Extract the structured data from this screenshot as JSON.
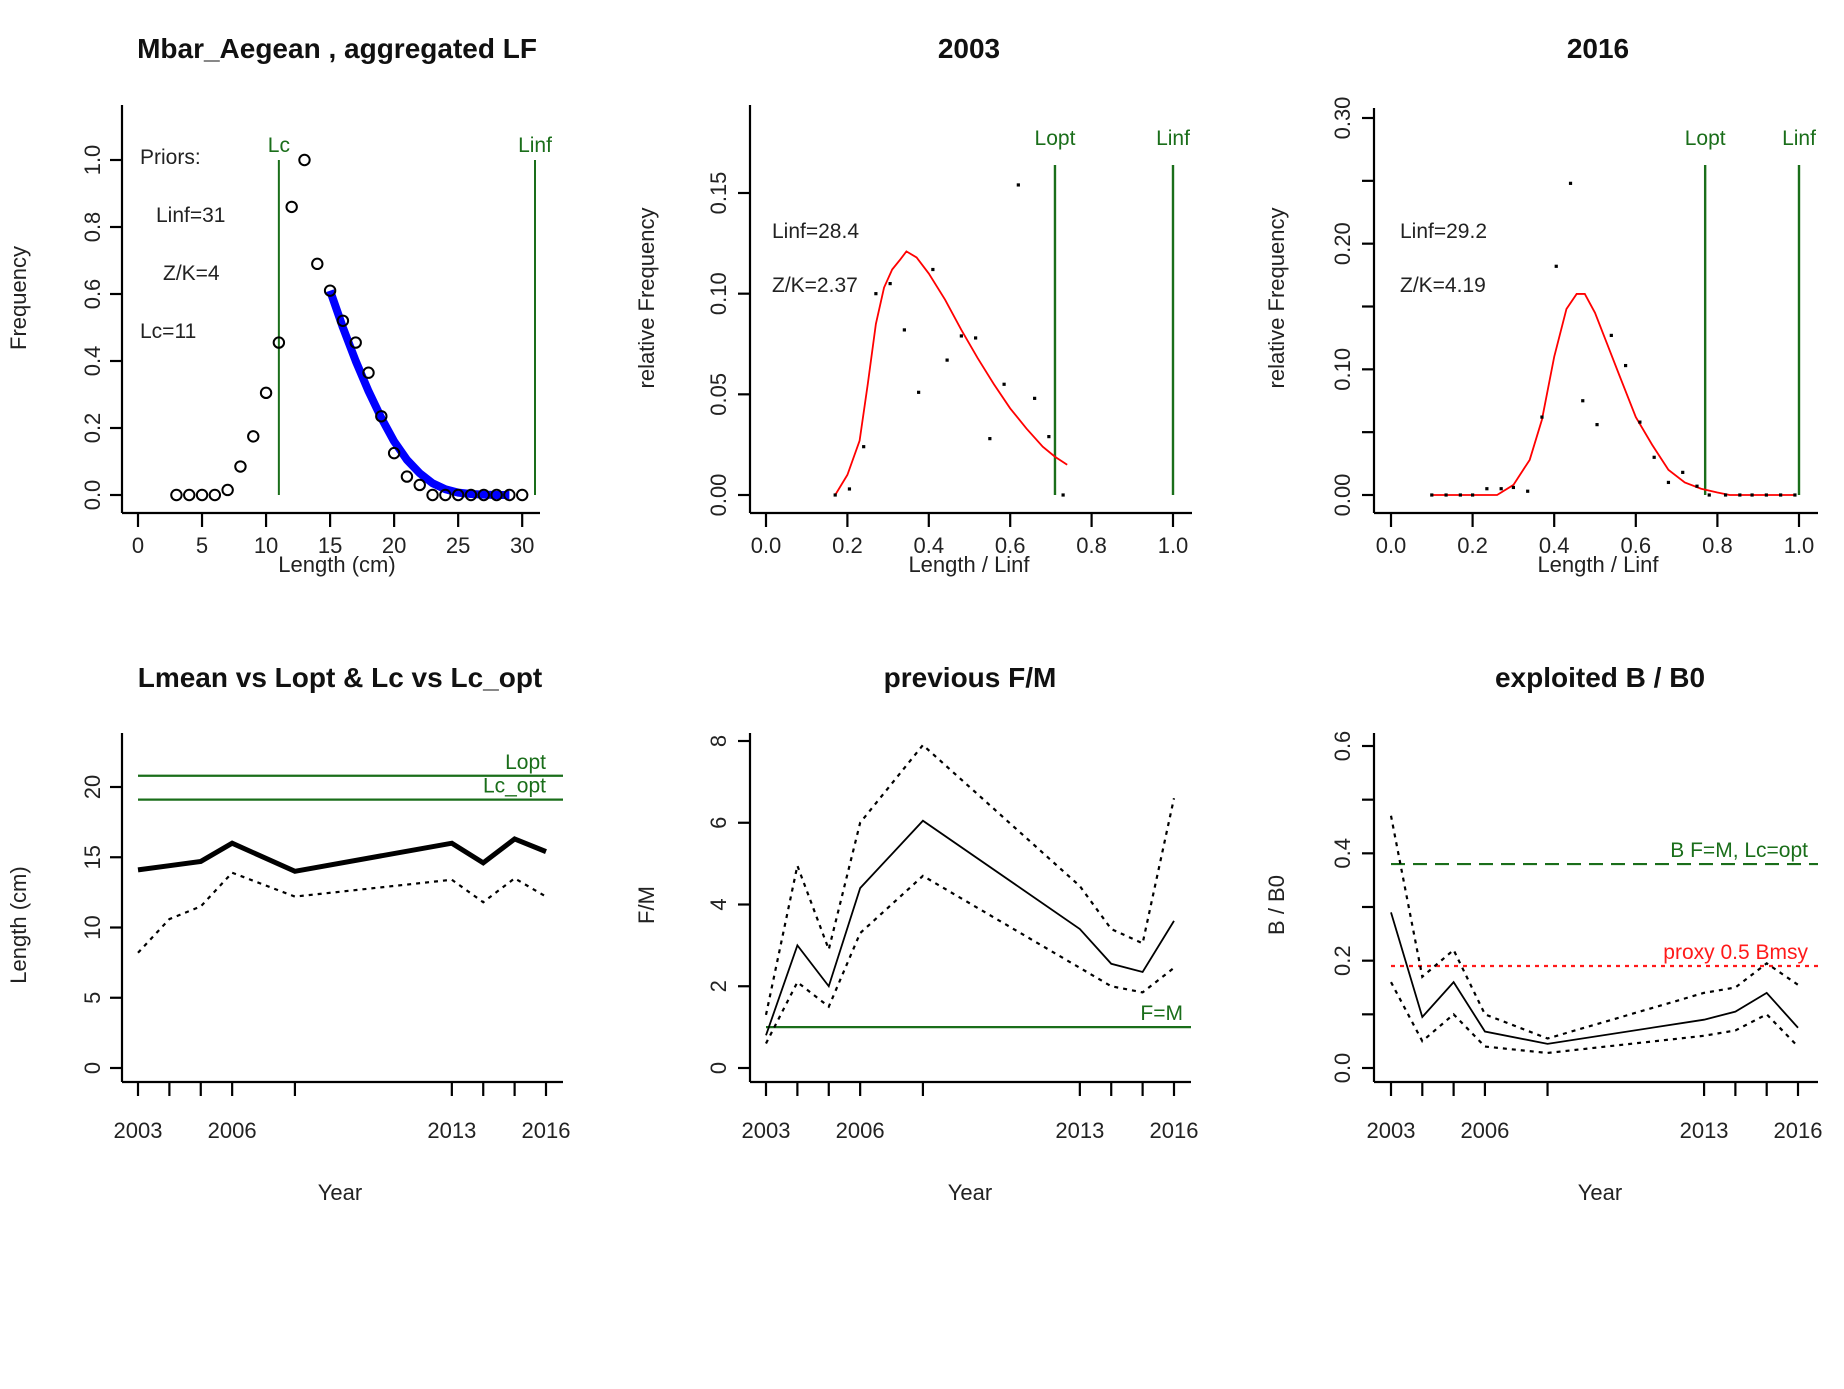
{
  "chart_data": [
    {
      "id": "lf",
      "type": "scatter",
      "title": "Mbar_Aegean , aggregated LF",
      "xlabel": "Length (cm)",
      "ylabel": "Frequency",
      "xlim": [
        0,
        31
      ],
      "ylim": [
        0,
        1.1
      ],
      "xticks": [
        0,
        5,
        10,
        15,
        20,
        25,
        30
      ],
      "yticks": [
        0.0,
        0.2,
        0.4,
        0.6,
        0.8,
        1.0
      ],
      "ytick_labels": [
        "0.0",
        "0.2",
        "0.4",
        "0.6",
        "0.8",
        "1.0"
      ],
      "points": {
        "x": [
          3,
          4,
          5,
          6,
          7,
          8,
          9,
          10,
          11,
          12,
          13,
          14,
          15,
          16,
          17,
          18,
          19,
          20,
          21,
          22,
          23,
          24,
          25,
          26,
          27,
          28,
          29,
          30
        ],
        "y": [
          0.0,
          0.0,
          0.0,
          0.0,
          0.015,
          0.085,
          0.175,
          0.305,
          0.455,
          0.86,
          1.0,
          0.69,
          0.61,
          0.52,
          0.455,
          0.365,
          0.235,
          0.125,
          0.055,
          0.03,
          0.0,
          0.0,
          0.0,
          0.0,
          0.0,
          0.0,
          0.0,
          0.0
        ]
      },
      "fit_curve": {
        "name": "fit",
        "color": "#0000ff",
        "x": [
          15,
          16,
          17,
          18,
          19,
          20,
          21,
          22,
          23,
          24,
          25,
          26,
          27,
          28,
          29
        ],
        "y": [
          0.61,
          0.5,
          0.4,
          0.31,
          0.23,
          0.16,
          0.105,
          0.065,
          0.035,
          0.017,
          0.007,
          0.003,
          0.001,
          0.0,
          0.0
        ]
      },
      "vlines": [
        {
          "label": "Lc",
          "x": 11,
          "color": "#1a6e1a"
        },
        {
          "label": "Linf",
          "x": 31,
          "color": "#1a6e1a"
        }
      ],
      "annotations": [
        "Priors:",
        "Linf=31",
        "Z/K=4",
        "Lc=11"
      ]
    },
    {
      "id": "y2003",
      "type": "scatter",
      "title": "2003",
      "xlabel": "Length / Linf",
      "ylabel": "relative Frequency",
      "xlim": [
        0,
        1.0
      ],
      "ylim": [
        0,
        0.18
      ],
      "xticks": [
        0.0,
        0.2,
        0.4,
        0.6,
        0.8,
        1.0
      ],
      "xtick_labels": [
        "0.0",
        "0.2",
        "0.4",
        "0.6",
        "0.8",
        "1.0"
      ],
      "yticks": [
        0.0,
        0.05,
        0.1,
        0.15
      ],
      "ytick_labels": [
        "0.00",
        "0.05",
        "0.10",
        "0.15"
      ],
      "points": {
        "x": [
          0.17,
          0.205,
          0.24,
          0.27,
          0.305,
          0.34,
          0.375,
          0.41,
          0.445,
          0.48,
          0.515,
          0.55,
          0.585,
          0.62,
          0.66,
          0.695,
          0.73
        ],
        "y": [
          0.0,
          0.003,
          0.024,
          0.1,
          0.105,
          0.082,
          0.051,
          0.112,
          0.067,
          0.079,
          0.078,
          0.028,
          0.055,
          0.154,
          0.048,
          0.029,
          0.0
        ]
      },
      "fit_curve": {
        "name": "fit",
        "color": "#ff0000",
        "x": [
          0.17,
          0.2,
          0.23,
          0.25,
          0.27,
          0.29,
          0.31,
          0.33,
          0.345,
          0.37,
          0.4,
          0.44,
          0.48,
          0.52,
          0.56,
          0.6,
          0.64,
          0.68,
          0.71,
          0.74
        ],
        "y": [
          0.0,
          0.01,
          0.027,
          0.055,
          0.085,
          0.103,
          0.112,
          0.117,
          0.121,
          0.118,
          0.11,
          0.097,
          0.082,
          0.068,
          0.055,
          0.043,
          0.033,
          0.024,
          0.019,
          0.015
        ]
      },
      "vlines": [
        {
          "label": "Lopt",
          "x": 0.71,
          "color": "#1a6e1a"
        },
        {
          "label": "Linf",
          "x": 1.0,
          "color": "#1a6e1a"
        }
      ],
      "annotations": [
        "Linf=28.4",
        "Z/K=2.37"
      ]
    },
    {
      "id": "y2016",
      "type": "scatter",
      "title": "2016",
      "xlabel": "Length / Linf",
      "ylabel": "relative Frequency",
      "xlim": [
        0,
        1.0
      ],
      "ylim": [
        0,
        0.3
      ],
      "xticks": [
        0.0,
        0.2,
        0.4,
        0.6,
        0.8,
        1.0
      ],
      "xtick_labels": [
        "0.0",
        "0.2",
        "0.4",
        "0.6",
        "0.8",
        "1.0"
      ],
      "yticks": [
        0.0,
        0.05,
        0.1,
        0.15,
        0.2,
        0.25,
        0.3
      ],
      "ytick_labels": [
        "0.00",
        "",
        "0.10",
        "",
        "0.20",
        "",
        "0.30"
      ],
      "points": {
        "x": [
          0.1,
          0.135,
          0.17,
          0.2,
          0.235,
          0.27,
          0.3,
          0.335,
          0.37,
          0.405,
          0.44,
          0.47,
          0.505,
          0.54,
          0.575,
          0.61,
          0.645,
          0.68,
          0.715,
          0.75,
          0.78,
          0.82,
          0.855,
          0.885,
          0.92,
          0.955,
          0.99
        ],
        "y": [
          0.0,
          0.0,
          0.0,
          0.0,
          0.005,
          0.005,
          0.006,
          0.003,
          0.062,
          0.182,
          0.248,
          0.075,
          0.056,
          0.127,
          0.103,
          0.058,
          0.03,
          0.01,
          0.018,
          0.007,
          0.0,
          0.0,
          0.0,
          0.0,
          0.0,
          0.0,
          0.0
        ]
      },
      "fit_curve": {
        "name": "fit",
        "color": "#ff0000",
        "x": [
          0.1,
          0.26,
          0.3,
          0.34,
          0.37,
          0.4,
          0.43,
          0.455,
          0.475,
          0.5,
          0.53,
          0.56,
          0.6,
          0.64,
          0.68,
          0.72,
          0.76,
          0.8,
          0.83,
          0.99
        ],
        "y": [
          0.0,
          0.0,
          0.008,
          0.028,
          0.06,
          0.11,
          0.148,
          0.16,
          0.16,
          0.145,
          0.12,
          0.095,
          0.062,
          0.04,
          0.02,
          0.01,
          0.005,
          0.002,
          0.0,
          0.0
        ]
      },
      "vlines": [
        {
          "label": "Lopt",
          "x": 0.77,
          "color": "#1a6e1a"
        },
        {
          "label": "Linf",
          "x": 1.0,
          "color": "#1a6e1a"
        }
      ],
      "annotations": [
        "Linf=29.2",
        "Z/K=4.19"
      ]
    },
    {
      "id": "lmean",
      "type": "line",
      "title": "Lmean vs Lopt & Lc vs Lc_opt",
      "xlabel": "Year",
      "ylabel": "Length (cm)",
      "xlim": [
        2003,
        2016
      ],
      "ylim": [
        0,
        22
      ],
      "xticks": [
        2003,
        2004,
        2005,
        2006,
        2008,
        2013,
        2014,
        2015,
        2016
      ],
      "xtick_labels": [
        "2003",
        "",
        "",
        "2006",
        "",
        "2013",
        "",
        "",
        "2016"
      ],
      "yticks": [
        0,
        5,
        10,
        15,
        20
      ],
      "ytick_labels": [
        "0",
        "5",
        "10",
        "15",
        "20"
      ],
      "year_positions": [
        0,
        1,
        2,
        3,
        5,
        10,
        11,
        12,
        13
      ],
      "series": [
        {
          "name": "Lmean",
          "style": "solid-thick",
          "values": [
            14.1,
            14.4,
            14.7,
            16.0,
            14.0,
            16.0,
            14.6,
            16.3,
            15.4
          ]
        },
        {
          "name": "Lc",
          "style": "dotted",
          "values": [
            8.2,
            10.6,
            11.5,
            13.9,
            12.2,
            13.4,
            11.8,
            13.5,
            12.2
          ]
        }
      ],
      "hlines": [
        {
          "label": "Lopt",
          "y": 20.8,
          "color": "#1a6e1a",
          "style": "solid"
        },
        {
          "label": "Lc_opt",
          "y": 19.1,
          "color": "#1a6e1a",
          "style": "solid"
        }
      ]
    },
    {
      "id": "fm",
      "type": "line",
      "title": "previous F/M",
      "xlabel": "Year",
      "ylabel": "F/M",
      "xlim": [
        2003,
        2016
      ],
      "ylim": [
        0,
        8
      ],
      "xticks": [
        2003,
        2004,
        2005,
        2006,
        2008,
        2013,
        2014,
        2015,
        2016
      ],
      "xtick_labels": [
        "2003",
        "",
        "",
        "2006",
        "",
        "2013",
        "",
        "",
        "2016"
      ],
      "yticks": [
        0,
        2,
        4,
        6,
        8
      ],
      "ytick_labels": [
        "0",
        "2",
        "4",
        "6",
        "8"
      ],
      "year_positions": [
        0,
        1,
        2,
        3,
        5,
        10,
        11,
        12,
        13
      ],
      "series": [
        {
          "name": "F/M",
          "style": "solid",
          "values": [
            0.8,
            3.0,
            2.0,
            4.4,
            6.05,
            3.4,
            2.55,
            2.35,
            3.6
          ]
        },
        {
          "name": "upper",
          "style": "dotted",
          "values": [
            1.3,
            4.95,
            2.9,
            6.0,
            7.9,
            4.45,
            3.4,
            3.05,
            6.6
          ]
        },
        {
          "name": "lower",
          "style": "dotted",
          "values": [
            0.6,
            2.1,
            1.5,
            3.3,
            4.7,
            2.45,
            2.0,
            1.85,
            2.45
          ]
        }
      ],
      "hlines": [
        {
          "label": "F=M",
          "y": 1.0,
          "color": "#1a6e1a",
          "style": "solid"
        }
      ]
    },
    {
      "id": "bb0",
      "type": "line",
      "title": "exploited B / B0",
      "xlabel": "Year",
      "ylabel": "B / B0",
      "xlim": [
        2003,
        2016
      ],
      "ylim": [
        0,
        0.6
      ],
      "xticks": [
        2003,
        2004,
        2005,
        2006,
        2008,
        2013,
        2014,
        2015,
        2016
      ],
      "xtick_labels": [
        "2003",
        "",
        "",
        "2006",
        "",
        "2013",
        "",
        "",
        "2016"
      ],
      "yticks": [
        0.0,
        0.1,
        0.2,
        0.3,
        0.4,
        0.5,
        0.6
      ],
      "ytick_labels": [
        "0.0",
        "",
        "0.2",
        "",
        "0.4",
        "",
        "0.6"
      ],
      "year_positions": [
        0,
        1,
        2,
        3,
        5,
        10,
        11,
        12,
        13
      ],
      "series": [
        {
          "name": "B/B0",
          "style": "solid",
          "values": [
            0.29,
            0.095,
            0.16,
            0.068,
            0.045,
            0.09,
            0.105,
            0.14,
            0.075
          ]
        },
        {
          "name": "upper",
          "style": "dotted",
          "values": [
            0.47,
            0.17,
            0.22,
            0.1,
            0.055,
            0.14,
            0.15,
            0.195,
            0.155
          ]
        },
        {
          "name": "lower",
          "style": "dotted",
          "values": [
            0.16,
            0.05,
            0.1,
            0.04,
            0.028,
            0.06,
            0.07,
            0.1,
            0.04
          ]
        }
      ],
      "hlines": [
        {
          "label": "B F=M, Lc=opt",
          "y": 0.38,
          "color": "#1a6e1a",
          "style": "dashed"
        },
        {
          "label": "proxy 0.5 Bmsy",
          "y": 0.19,
          "color": "#ff1a1a",
          "style": "dotted"
        }
      ]
    }
  ]
}
